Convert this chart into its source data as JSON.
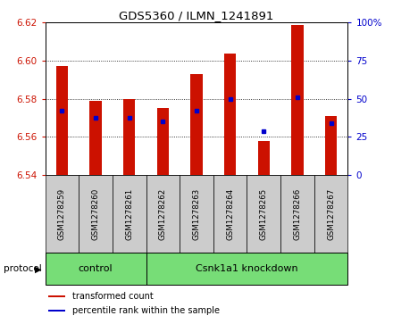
{
  "title": "GDS5360 / ILMN_1241891",
  "samples": [
    "GSM1278259",
    "GSM1278260",
    "GSM1278261",
    "GSM1278262",
    "GSM1278263",
    "GSM1278264",
    "GSM1278265",
    "GSM1278266",
    "GSM1278267"
  ],
  "bar_tops": [
    6.597,
    6.579,
    6.58,
    6.575,
    6.593,
    6.604,
    6.558,
    6.619,
    6.571
  ],
  "blue_dots": [
    6.574,
    6.57,
    6.57,
    6.568,
    6.574,
    6.58,
    6.563,
    6.581,
    6.567
  ],
  "bar_bottom": 6.54,
  "ylim_left": [
    6.54,
    6.62
  ],
  "ylim_right": [
    0,
    100
  ],
  "yticks_left": [
    6.54,
    6.56,
    6.58,
    6.6,
    6.62
  ],
  "yticks_right": [
    0,
    25,
    50,
    75,
    100
  ],
  "ytick_labels_right": [
    "0",
    "25",
    "50",
    "75",
    "100%"
  ],
  "bar_color": "#cc1100",
  "dot_color": "#0000cc",
  "protocol_groups": [
    {
      "label": "control",
      "start": 0,
      "end": 3
    },
    {
      "label": "Csnk1a1 knockdown",
      "start": 3,
      "end": 9
    }
  ],
  "protocol_label": "protocol",
  "group_color": "#77dd77",
  "tick_area_color": "#cccccc",
  "grid_color": "#000000",
  "legend_items": [
    {
      "label": "transformed count",
      "color": "#cc1100"
    },
    {
      "label": "percentile rank within the sample",
      "color": "#0000cc"
    }
  ],
  "bar_width": 0.35
}
